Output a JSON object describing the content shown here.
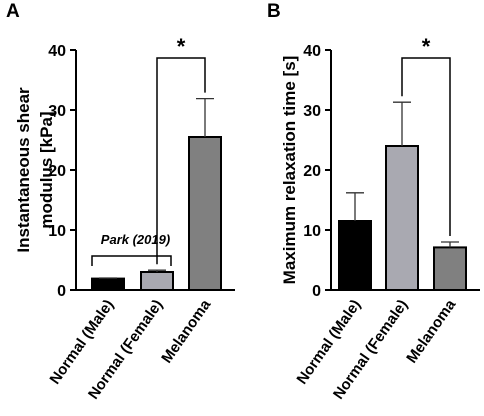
{
  "chart_data": [
    {
      "panel": "A",
      "type": "bar",
      "categories": [
        "Normal (Male)",
        "Normal (Female)",
        "Melanoma"
      ],
      "values": [
        1.9,
        3.0,
        25.5
      ],
      "errors": [
        0.1,
        0.3,
        6.4
      ],
      "colors": [
        "#000000",
        "#a9a9b1",
        "#808080"
      ],
      "ylabel": [
        "Instantaneous shear",
        "modulus [kPa]"
      ],
      "ylim": [
        0,
        40
      ],
      "yticks": [
        "0",
        "10",
        "20",
        "30",
        "40"
      ],
      "significance": {
        "from": 1,
        "to": 2,
        "label": "*"
      },
      "annotation": {
        "text": "Park (2019)",
        "from": 0,
        "to": 1
      }
    },
    {
      "panel": "B",
      "type": "bar",
      "categories": [
        "Normal (Male)",
        "Normal (Female)",
        "Melanoma"
      ],
      "values": [
        11.5,
        24.0,
        7.1
      ],
      "errors": [
        4.7,
        7.3,
        0.9
      ],
      "colors": [
        "#000000",
        "#a9a9b1",
        "#808080"
      ],
      "ylabel": [
        "Maximum relaxation time [s]"
      ],
      "ylim": [
        0,
        40
      ],
      "yticks": [
        "0",
        "10",
        "20",
        "30",
        "40"
      ],
      "significance": {
        "from": 1,
        "to": 2,
        "label": "*"
      }
    }
  ]
}
